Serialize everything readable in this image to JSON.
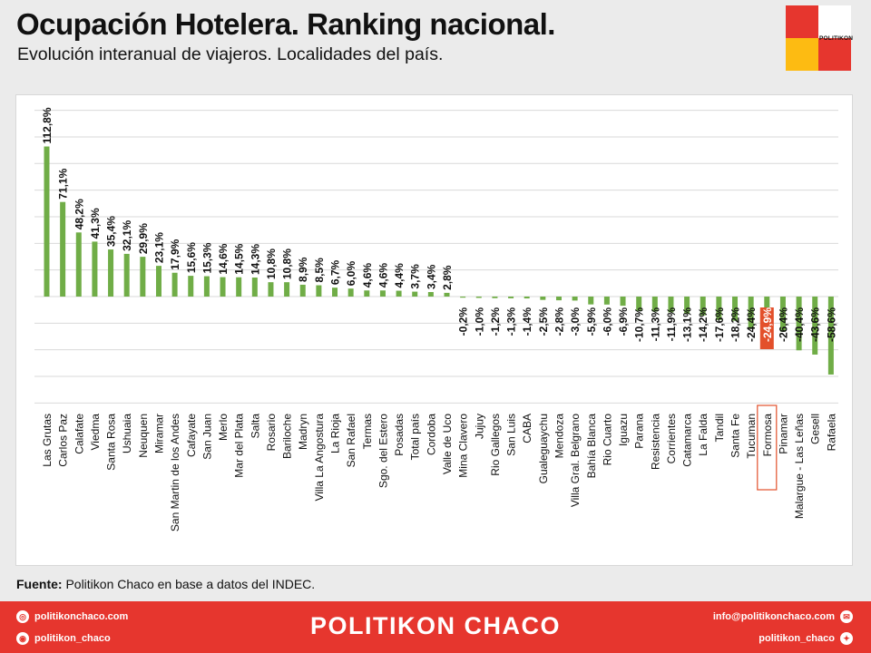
{
  "header": {
    "title": "Ocupación Hotelera. Ranking nacional.",
    "subtitle": "Evolución interanual de viajeros. Localidades del país."
  },
  "logo": {
    "text": "POLITIKON"
  },
  "source": {
    "label": "Fuente:",
    "text": " Politikon Chaco en base a datos del INDEC."
  },
  "footer": {
    "brand": "POLITIKON CHACO",
    "web": "politikonchaco.com",
    "instagram": "politikon_chaco",
    "email": "info@politikonchaco.com",
    "twitter": "politikon_chaco"
  },
  "colors": {
    "bar": "#70ad47",
    "highlight_label_bg": "#e3502b",
    "highlight_box": "#e3502b",
    "brand_red": "#e6362e",
    "brand_yellow": "#fdbb12"
  },
  "chart_data": {
    "type": "bar",
    "highlight": "Formosa",
    "grid": true,
    "ylim": [
      -80,
      140
    ],
    "categories": [
      "Las Grutas",
      "Carlos Paz",
      "Calafate",
      "Viedma",
      "Santa Rosa",
      "Ushuaia",
      "Neuquen",
      "Miramar",
      "San Martin de los Andes",
      "Cafayate",
      "San Juan",
      "Merlo",
      "Mar del Plata",
      "Salta",
      "Rosario",
      "Bariloche",
      "Madryn",
      "Villa La Angostura",
      "La Rioja",
      "San Rafael",
      "Termas",
      "Sgo. del Estero",
      "Posadas",
      "Total país",
      "Cordoba",
      "Valle de Uco",
      "Mina Clavero",
      "Jujuy",
      "Rio Gallegos",
      "San Luis",
      "CABA",
      "Gualeguaychu",
      "Mendoza",
      "Villa Gral. Belgrano",
      "Bahía Blanca",
      "Rio Cuarto",
      "Iguazu",
      "Parana",
      "Resistencia",
      "Corrientes",
      "Catamarca",
      "La Falda",
      "Tandil",
      "Santa Fe",
      "Tucuman",
      "Formosa",
      "Pinamar",
      "Malargue - Las Leñas",
      "Gesell",
      "Rafaela"
    ],
    "values": [
      112.8,
      71.1,
      48.2,
      41.3,
      35.4,
      32.1,
      29.9,
      23.1,
      17.9,
      15.6,
      15.3,
      14.6,
      14.5,
      14.3,
      10.8,
      10.8,
      8.9,
      8.5,
      6.7,
      6.0,
      4.6,
      4.6,
      4.4,
      3.7,
      3.4,
      2.8,
      -0.2,
      -1.0,
      -1.2,
      -1.3,
      -1.4,
      -2.5,
      -2.8,
      -3.0,
      -5.9,
      -6.0,
      -6.9,
      -10.7,
      -11.3,
      -11.9,
      -13.1,
      -14.2,
      -17.6,
      -18.2,
      -24.4,
      -24.9,
      -26.4,
      -40.4,
      -43.6,
      -58.6
    ],
    "labels": [
      "112,8%",
      "71,1%",
      "48,2%",
      "41,3%",
      "35,4%",
      "32,1%",
      "29,9%",
      "23,1%",
      "17,9%",
      "15,6%",
      "15,3%",
      "14,6%",
      "14,5%",
      "14,3%",
      "10,8%",
      "10,8%",
      "8,9%",
      "8,5%",
      "6,7%",
      "6,0%",
      "4,6%",
      "4,6%",
      "4,4%",
      "3,7%",
      "3,4%",
      "2,8%",
      "-0,2%",
      "-1,0%",
      "-1,2%",
      "-1,3%",
      "-1,4%",
      "-2,5%",
      "-2,8%",
      "-3,0%",
      "-5,9%",
      "-6,0%",
      "-6,9%",
      "-10,7%",
      "-11,3%",
      "-11,9%",
      "-13,1%",
      "-14,2%",
      "-17,6%",
      "-18,2%",
      "-24,4%",
      "-24,9%",
      "-26,4%",
      "-40,4%",
      "-43,6%",
      "-58,6%"
    ]
  }
}
